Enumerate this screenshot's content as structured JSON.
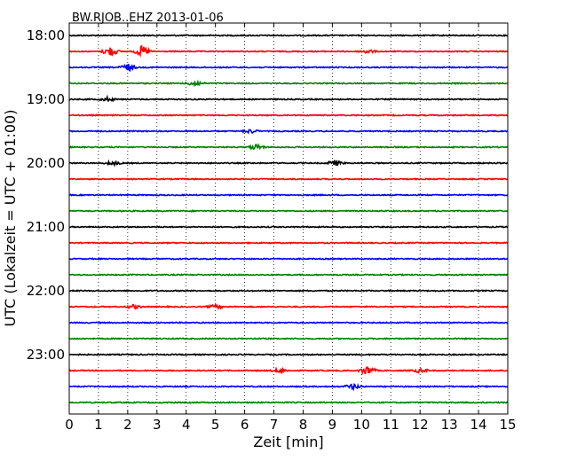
{
  "chart_data": {
    "type": "line",
    "title": "BW.RJOB..EHZ 2013-01-06",
    "xlabel": "Zeit  [min]",
    "ylabel": "UTC (Lokalzeit = UTC + 01:00)",
    "xlim": [
      0,
      15
    ],
    "xticks": [
      "0",
      "1",
      "2",
      "3",
      "4",
      "5",
      "6",
      "7",
      "8",
      "9",
      "10",
      "11",
      "12",
      "13",
      "14",
      "15"
    ],
    "yticks": [
      "18:00",
      "19:00",
      "20:00",
      "21:00",
      "22:00",
      "23:00"
    ],
    "grid": true,
    "colors": [
      "#000000",
      "#ff0000",
      "#0000ff",
      "#008000"
    ],
    "series": [
      {
        "time": "18:00",
        "color": "#000000",
        "events": []
      },
      {
        "time": "18:15",
        "color": "#ff0000",
        "events": [
          {
            "x": 1.4,
            "amp": 5
          },
          {
            "x": 2.5,
            "amp": 6
          },
          {
            "x": 10.2,
            "amp": 2
          }
        ]
      },
      {
        "time": "18:30",
        "color": "#0000ff",
        "events": [
          {
            "x": 2.0,
            "amp": 4
          }
        ]
      },
      {
        "time": "18:45",
        "color": "#008000",
        "events": [
          {
            "x": 4.3,
            "amp": 3
          }
        ]
      },
      {
        "time": "19:00",
        "color": "#000000",
        "events": [
          {
            "x": 1.3,
            "amp": 2
          }
        ]
      },
      {
        "time": "19:15",
        "color": "#ff0000",
        "events": []
      },
      {
        "time": "19:30",
        "color": "#0000ff",
        "events": [
          {
            "x": 6.2,
            "amp": 2
          }
        ]
      },
      {
        "time": "19:45",
        "color": "#008000",
        "events": [
          {
            "x": 6.4,
            "amp": 3
          }
        ]
      },
      {
        "time": "20:00",
        "color": "#000000",
        "events": [
          {
            "x": 1.5,
            "amp": 2
          },
          {
            "x": 9.1,
            "amp": 3
          }
        ]
      },
      {
        "time": "20:15",
        "color": "#ff0000",
        "events": []
      },
      {
        "time": "20:30",
        "color": "#0000ff",
        "events": []
      },
      {
        "time": "20:45",
        "color": "#008000",
        "events": []
      },
      {
        "time": "21:00",
        "color": "#000000",
        "events": []
      },
      {
        "time": "21:15",
        "color": "#ff0000",
        "events": []
      },
      {
        "time": "21:30",
        "color": "#0000ff",
        "events": []
      },
      {
        "time": "21:45",
        "color": "#008000",
        "events": []
      },
      {
        "time": "22:00",
        "color": "#000000",
        "events": []
      },
      {
        "time": "22:15",
        "color": "#ff0000",
        "events": [
          {
            "x": 2.2,
            "amp": 2
          },
          {
            "x": 5.0,
            "amp": 2
          }
        ]
      },
      {
        "time": "22:30",
        "color": "#0000ff",
        "events": []
      },
      {
        "time": "22:45",
        "color": "#008000",
        "events": []
      },
      {
        "time": "23:00",
        "color": "#000000",
        "events": []
      },
      {
        "time": "23:15",
        "color": "#ff0000",
        "events": [
          {
            "x": 7.2,
            "amp": 2
          },
          {
            "x": 10.2,
            "amp": 5
          },
          {
            "x": 12.0,
            "amp": 2
          }
        ]
      },
      {
        "time": "23:30",
        "color": "#0000ff",
        "events": [
          {
            "x": 9.7,
            "amp": 3
          }
        ]
      },
      {
        "time": "23:45",
        "color": "#008000",
        "events": []
      }
    ]
  }
}
